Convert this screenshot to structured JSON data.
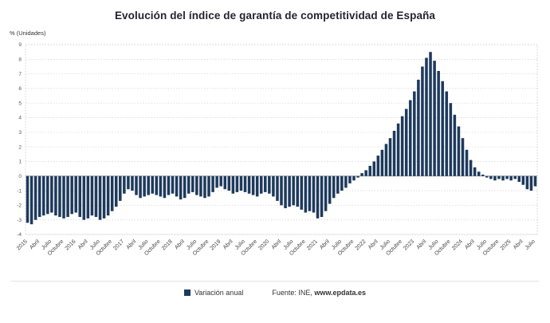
{
  "title": "Evolución del índice de garantía de competitividad de España",
  "y_axis_unit_label": "% (Unidades)",
  "legend": {
    "series_label": "Variación anual"
  },
  "source": {
    "prefix": "Fuente: INE, ",
    "site": "www.epdata.es"
  },
  "colors": {
    "bar": "#1e3a5c",
    "grid": "#d9d9d9",
    "zero_line": "#8a8a8a",
    "axis_text": "#555555"
  },
  "chart_data": {
    "type": "bar",
    "title": "Evolución del índice de garantía de competitividad de España",
    "xlabel": "",
    "ylabel": "% (Unidades)",
    "ylim": [
      -4,
      9
    ],
    "y_ticks": [
      9,
      8,
      7,
      6,
      5,
      4,
      3,
      2,
      1,
      0,
      -1,
      -2,
      -3,
      -4
    ],
    "grid": true,
    "legend_position": "bottom",
    "series_name": "Variación anual",
    "bar_color": "#1e3a5c",
    "x_labels": [
      "2015",
      "",
      "",
      "Abril",
      "",
      "",
      "Julio",
      "",
      "",
      "Octubre",
      "",
      "",
      "2016",
      "",
      "",
      "Abril",
      "",
      "",
      "Julio",
      "",
      "",
      "Octubre",
      "",
      "",
      "2017",
      "",
      "",
      "Abril",
      "",
      "",
      "Julio",
      "",
      "",
      "Octubre",
      "",
      "",
      "2018",
      "",
      "",
      "Abril",
      "",
      "",
      "Julio",
      "",
      "",
      "Octubre",
      "",
      "",
      "2019",
      "",
      "",
      "Abril",
      "",
      "",
      "Julio",
      "",
      "",
      "Octubre",
      "",
      "",
      "2020",
      "",
      "",
      "Abril",
      "",
      "",
      "Julio",
      "",
      "",
      "Octubre",
      "",
      "",
      "2021",
      "",
      "",
      "Abril",
      "",
      "",
      "Julio",
      "",
      "",
      "Octubre",
      "",
      "",
      "2022",
      "",
      "",
      "Abril",
      "",
      "",
      "Julio",
      "",
      "",
      "Octubre",
      "",
      "",
      "2023",
      "",
      "",
      "Abril",
      "",
      "",
      "Julio",
      "",
      "",
      "Octubre",
      "",
      "",
      "2024",
      "",
      "",
      "Abril",
      "",
      "",
      "Julio",
      "",
      "",
      "Octubre",
      "",
      "",
      "2025",
      "",
      "",
      "Abril",
      "",
      "",
      "Julio"
    ],
    "values": [
      -3.2,
      -3.3,
      -3.0,
      -2.8,
      -2.7,
      -2.6,
      -2.5,
      -2.7,
      -2.8,
      -2.9,
      -2.8,
      -2.6,
      -2.5,
      -2.8,
      -3.0,
      -2.9,
      -2.7,
      -2.8,
      -3.0,
      -2.9,
      -2.7,
      -2.4,
      -2.1,
      -1.7,
      -1.2,
      -0.9,
      -1.0,
      -1.3,
      -1.5,
      -1.4,
      -1.3,
      -1.2,
      -1.3,
      -1.4,
      -1.5,
      -1.3,
      -1.2,
      -1.4,
      -1.6,
      -1.5,
      -1.2,
      -1.1,
      -1.3,
      -1.4,
      -1.5,
      -1.4,
      -1.1,
      -0.8,
      -0.7,
      -0.9,
      -1.0,
      -1.2,
      -1.1,
      -1.0,
      -1.1,
      -1.2,
      -1.3,
      -1.4,
      -1.2,
      -1.1,
      -1.2,
      -1.4,
      -1.7,
      -2.0,
      -2.2,
      -2.1,
      -2.0,
      -2.1,
      -2.3,
      -2.5,
      -2.4,
      -2.5,
      -2.9,
      -2.8,
      -2.4,
      -1.9,
      -1.5,
      -1.2,
      -1.0,
      -0.8,
      -0.5,
      -0.3,
      -0.1,
      0.2,
      0.4,
      0.7,
      1.0,
      1.4,
      1.8,
      2.2,
      2.6,
      3.1,
      3.6,
      4.1,
      4.6,
      5.2,
      5.8,
      6.6,
      7.5,
      8.1,
      8.5,
      7.9,
      7.2,
      6.5,
      5.8,
      5.0,
      4.2,
      3.4,
      2.6,
      1.8,
      1.1,
      0.6,
      0.3,
      0.1,
      -0.1,
      -0.2,
      -0.3,
      -0.2,
      -0.3,
      -0.2,
      -0.3,
      -0.2,
      -0.4,
      -0.6,
      -0.9,
      -1.0,
      -0.7
    ]
  }
}
